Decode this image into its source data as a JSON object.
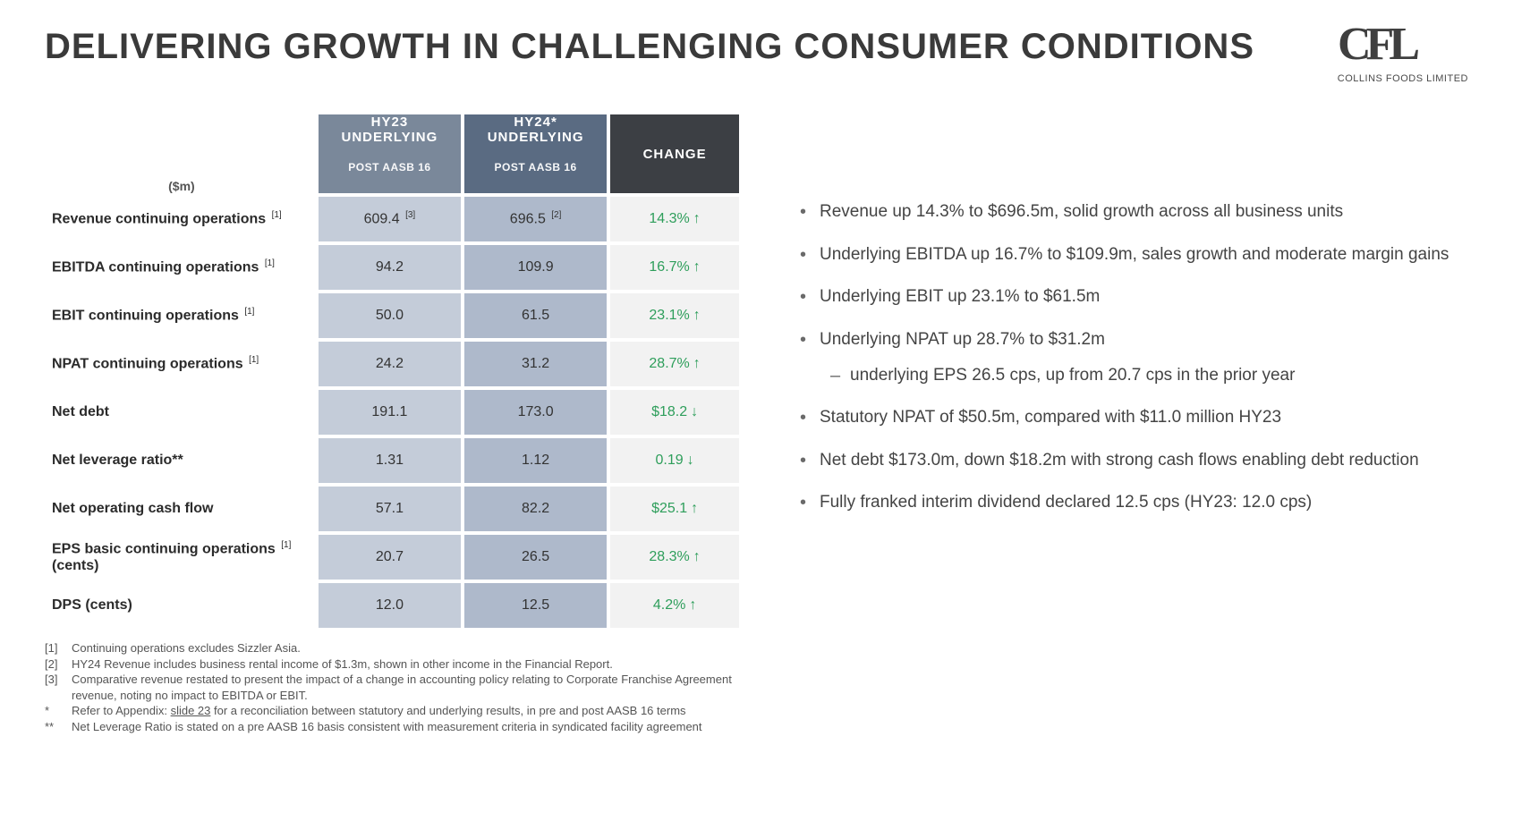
{
  "title": "DELIVERING GROWTH IN CHALLENGING CONSUMER CONDITIONS",
  "logo": {
    "text": "CFL",
    "caption": "COLLINS FOODS LIMITED",
    "color": "#3f3f3f"
  },
  "colors": {
    "header_col1_bg": "#7a889a",
    "header_col2_bg": "#5a6b82",
    "header_col3_bg": "#3c3f44",
    "data_col1_bg": "#c4ccd9",
    "data_col2_bg": "#aeb9cb",
    "change_bg": "#f2f2f2",
    "change_text": "#2e9e5b"
  },
  "table": {
    "unit_label": "($m)",
    "headers": {
      "col1": {
        "line1": "HY23",
        "line2": "UNDERLYING",
        "sub": "POST AASB 16"
      },
      "col2": {
        "line1": "HY24*",
        "line2": "UNDERLYING",
        "sub": "POST AASB 16"
      },
      "col3": {
        "line1": "CHANGE"
      }
    },
    "rows": [
      {
        "label": "Revenue continuing operations",
        "label_sup": "[1]",
        "v1": "609.4",
        "v1_sup": "[3]",
        "v2": "696.5",
        "v2_sup": "[2]",
        "chg": "14.3%",
        "arrow": "↑"
      },
      {
        "label": "EBITDA continuing operations",
        "label_sup": "[1]",
        "v1": "94.2",
        "v2": "109.9",
        "chg": "16.7%",
        "arrow": "↑"
      },
      {
        "label": "EBIT continuing operations",
        "label_sup": "[1]",
        "v1": "50.0",
        "v2": "61.5",
        "chg": "23.1%",
        "arrow": "↑"
      },
      {
        "label": "NPAT continuing operations",
        "label_sup": "[1]",
        "v1": "24.2",
        "v2": "31.2",
        "chg": "28.7%",
        "arrow": "↑"
      },
      {
        "label": "Net debt",
        "v1": "191.1",
        "v2": "173.0",
        "chg": "$18.2",
        "arrow": "↓"
      },
      {
        "label": "Net leverage ratio**",
        "v1": "1.31",
        "v2": "1.12",
        "chg": "0.19",
        "arrow": "↓"
      },
      {
        "label": "Net operating cash flow",
        "v1": "57.1",
        "v2": "82.2",
        "chg": "$25.1",
        "arrow": "↑"
      },
      {
        "label": "EPS basic continuing operations",
        "label_sup": "[1]",
        "label_line2": "(cents)",
        "v1": "20.7",
        "v2": "26.5",
        "chg": "28.3%",
        "arrow": "↑"
      },
      {
        "label": "DPS (cents)",
        "v1": "12.0",
        "v2": "12.5",
        "chg": "4.2%",
        "arrow": "↑"
      }
    ]
  },
  "bullets": [
    {
      "text": "Revenue up 14.3% to $696.5m, solid growth across all business units"
    },
    {
      "text": "Underlying EBITDA up 16.7% to $109.9m, sales growth and moderate margin gains"
    },
    {
      "text": "Underlying EBIT up 23.1% to $61.5m"
    },
    {
      "text": "Underlying NPAT up 28.7% to $31.2m"
    },
    {
      "text": "underlying EPS 26.5 cps, up from 20.7 cps in the prior year",
      "sub": true
    },
    {
      "text": "Statutory NPAT of $50.5m, compared with $11.0 million HY23"
    },
    {
      "text": "Net debt $173.0m, down $18.2m with strong cash flows enabling debt reduction"
    },
    {
      "text": "Fully franked interim dividend declared 12.5 cps (HY23: 12.0 cps)"
    }
  ],
  "footnotes": [
    {
      "key": "[1]",
      "text": "Continuing operations excludes Sizzler Asia."
    },
    {
      "key": "[2]",
      "text": "HY24 Revenue includes business rental income of $1.3m, shown in other income in the Financial Report."
    },
    {
      "key": "[3]",
      "text": "Comparative revenue restated to present the impact of a change in accounting policy relating to Corporate Franchise Agreement revenue, noting no impact to EBITDA or EBIT."
    },
    {
      "key": "*",
      "text_pre": "Refer to Appendix: ",
      "link": "slide 23",
      "text_post": " for a reconciliation between statutory and underlying results, in pre and post AASB 16 terms"
    },
    {
      "key": "**",
      "text": "Net Leverage Ratio is stated on a pre AASB 16 basis consistent with measurement criteria in syndicated facility agreement"
    }
  ]
}
